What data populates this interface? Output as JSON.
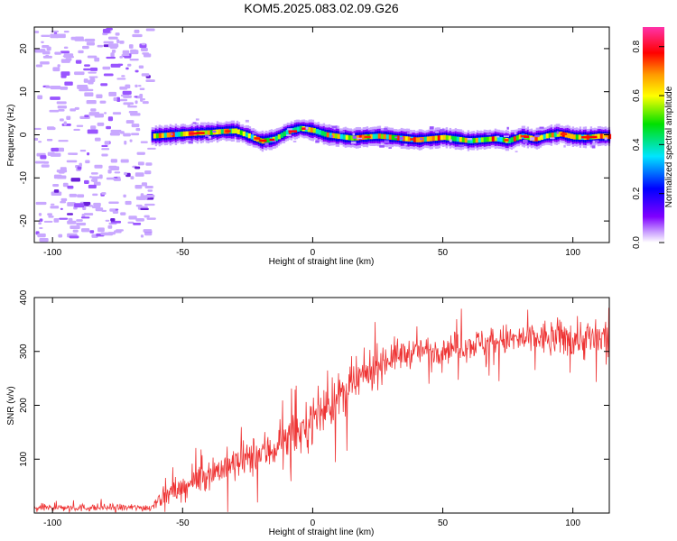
{
  "title": "KOM5.2025.083.02.09.G26",
  "colors": {
    "snr_line": "#ee3333",
    "frame": "#000000",
    "noise_speckle": "#b388ff",
    "noise_dark": "#7a33e0"
  },
  "chart_data": [
    {
      "type": "heatmap",
      "xlabel": "Height of straight line (km)",
      "ylabel": "Frequency (Hz)",
      "xlim": [
        -107,
        114
      ],
      "ylim": [
        -25,
        25
      ],
      "xticks": [
        -100,
        -50,
        0,
        50,
        100
      ],
      "yticks": [
        -20,
        -10,
        0,
        10,
        20
      ],
      "colorbar": {
        "label": "Normalized spectral amplitude",
        "range": [
          0,
          0.88
        ],
        "ticks": [
          0.0,
          0.2,
          0.4,
          0.6,
          0.8
        ],
        "colormap": "rainbow (violet-blue-cyan-green-yellow-orange-red-magenta)"
      },
      "noise_region": {
        "x_range": [
          -107,
          -62
        ],
        "y_range": [
          -25,
          25
        ],
        "amplitude": 0.08
      },
      "signal_track": {
        "x_start": -62,
        "x_end": 114,
        "frequency_points": [
          [
            -62,
            -0.3
          ],
          [
            -55,
            0.0
          ],
          [
            -45,
            0.4
          ],
          [
            -40,
            0.5
          ],
          [
            -35,
            0.8
          ],
          [
            -30,
            0.9
          ],
          [
            -25,
            -0.2
          ],
          [
            -20,
            -1.5
          ],
          [
            -15,
            -1.0
          ],
          [
            -10,
            0.7
          ],
          [
            -5,
            1.5
          ],
          [
            0,
            1.0
          ],
          [
            5,
            0.0
          ],
          [
            10,
            -0.4
          ],
          [
            15,
            -0.8
          ],
          [
            20,
            -0.5
          ],
          [
            25,
            -0.3
          ],
          [
            30,
            -0.6
          ],
          [
            40,
            -1.2
          ],
          [
            50,
            -0.6
          ],
          [
            60,
            -1.4
          ],
          [
            70,
            -0.9
          ],
          [
            75,
            -1.4
          ],
          [
            80,
            -0.3
          ],
          [
            85,
            -1.0
          ],
          [
            90,
            -0.2
          ],
          [
            95,
            0.2
          ],
          [
            100,
            -0.5
          ],
          [
            105,
            -0.6
          ],
          [
            110,
            -0.3
          ],
          [
            114,
            -0.4
          ]
        ],
        "peak_amplitude": 0.88,
        "bandwidth_hz": 1.8
      }
    },
    {
      "type": "line",
      "xlabel": "Height of straight line (km)",
      "ylabel": "SNR (v/v)",
      "xlim": [
        -107,
        114
      ],
      "ylim": [
        0,
        400
      ],
      "xticks": [
        -100,
        -50,
        0,
        50,
        100
      ],
      "yticks": [
        100,
        200,
        300,
        400
      ],
      "series": [
        {
          "color": "#ee3333",
          "trend_points": [
            [
              -107,
              10
            ],
            [
              -62,
              10
            ],
            [
              -60,
              25
            ],
            [
              -50,
              45
            ],
            [
              -40,
              75
            ],
            [
              -30,
              90
            ],
            [
              -20,
              110
            ],
            [
              -15,
              120
            ],
            [
              -10,
              135
            ],
            [
              -5,
              150
            ],
            [
              0,
              175
            ],
            [
              5,
              195
            ],
            [
              10,
              215
            ],
            [
              15,
              235
            ],
            [
              20,
              255
            ],
            [
              25,
              275
            ],
            [
              30,
              290
            ],
            [
              40,
              300
            ],
            [
              50,
              305
            ],
            [
              60,
              312
            ],
            [
              70,
              320
            ],
            [
              80,
              322
            ],
            [
              90,
              325
            ],
            [
              100,
              325
            ],
            [
              114,
              320
            ]
          ],
          "noise_amplitude_points": [
            [
              -107,
              7
            ],
            [
              -62,
              7
            ],
            [
              -60,
              15
            ],
            [
              -40,
              30
            ],
            [
              0,
              45
            ],
            [
              20,
              40
            ],
            [
              40,
              25
            ],
            [
              80,
              30
            ],
            [
              95,
              35
            ],
            [
              114,
              45
            ]
          ]
        }
      ]
    }
  ]
}
